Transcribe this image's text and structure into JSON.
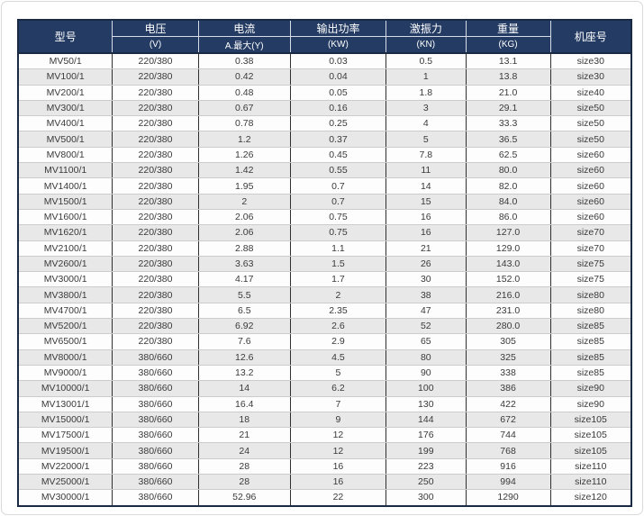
{
  "colors": {
    "header_bg": "#243b63",
    "header_divider": "#d7dde8",
    "table_border": "#1a2a45",
    "stripe": "#e8e8e8",
    "row_border": "#cccccc",
    "column_border": "#2f2f2f",
    "text": "#3a3a3a",
    "card_border": "#d9d9d9"
  },
  "table": {
    "columns": [
      {
        "key": "model",
        "label": "型号",
        "sub": ""
      },
      {
        "key": "volt",
        "label": "电压",
        "sub": "(V)"
      },
      {
        "key": "curr",
        "label": "电流",
        "sub": "A.最大(Y)"
      },
      {
        "key": "power",
        "label": "输出功率",
        "sub": "(KW)"
      },
      {
        "key": "force",
        "label": "激振力",
        "sub": "(KN)"
      },
      {
        "key": "weight",
        "label": "重量",
        "sub": "(KG)"
      },
      {
        "key": "frame",
        "label": "机座号",
        "sub": ""
      }
    ],
    "rows": [
      [
        "MV50/1",
        "220/380",
        "0.38",
        "0.03",
        "0.5",
        "13.1",
        "size30"
      ],
      [
        "MV100/1",
        "220/380",
        "0.42",
        "0.04",
        "1",
        "13.8",
        "size30"
      ],
      [
        "MV200/1",
        "220/380",
        "0.48",
        "0.05",
        "1.8",
        "21.0",
        "size40"
      ],
      [
        "MV300/1",
        "220/380",
        "0.67",
        "0.16",
        "3",
        "29.1",
        "size50"
      ],
      [
        "MV400/1",
        "220/380",
        "0.78",
        "0.25",
        "4",
        "33.3",
        "size50"
      ],
      [
        "MV500/1",
        "220/380",
        "1.2",
        "0.37",
        "5",
        "36.5",
        "size50"
      ],
      [
        "MV800/1",
        "220/380",
        "1.26",
        "0.45",
        "7.8",
        "62.5",
        "size60"
      ],
      [
        "MV1100/1",
        "220/380",
        "1.42",
        "0.55",
        "11",
        "80.0",
        "size60"
      ],
      [
        "MV1400/1",
        "220/380",
        "1.95",
        "0.7",
        "14",
        "82.0",
        "size60"
      ],
      [
        "MV1500/1",
        "220/380",
        "2",
        "0.7",
        "15",
        "84.0",
        "size60"
      ],
      [
        "MV1600/1",
        "220/380",
        "2.06",
        "0.75",
        "16",
        "86.0",
        "size60"
      ],
      [
        "MV1620/1",
        "220/380",
        "2.06",
        "0.75",
        "16",
        "127.0",
        "size70"
      ],
      [
        "MV2100/1",
        "220/380",
        "2.88",
        "1.1",
        "21",
        "129.0",
        "size70"
      ],
      [
        "MV2600/1",
        "220/380",
        "3.63",
        "1.5",
        "26",
        "143.0",
        "size75"
      ],
      [
        "MV3000/1",
        "220/380",
        "4.17",
        "1.7",
        "30",
        "152.0",
        "size75"
      ],
      [
        "MV3800/1",
        "220/380",
        "5.5",
        "2",
        "38",
        "216.0",
        "size80"
      ],
      [
        "MV4700/1",
        "220/380",
        "6.5",
        "2.35",
        "47",
        "231.0",
        "size80"
      ],
      [
        "MV5200/1",
        "220/380",
        "6.92",
        "2.6",
        "52",
        "280.0",
        "size85"
      ],
      [
        "MV6500/1",
        "220/380",
        "7.6",
        "2.9",
        "65",
        "305",
        "size85"
      ],
      [
        "MV8000/1",
        "380/660",
        "12.6",
        "4.5",
        "80",
        "325",
        "size85"
      ],
      [
        "MV9000/1",
        "380/660",
        "13.2",
        "5",
        "90",
        "338",
        "size85"
      ],
      [
        "MV10000/1",
        "380/660",
        "14",
        "6.2",
        "100",
        "386",
        "size90"
      ],
      [
        "MV13001/1",
        "380/660",
        "16.4",
        "7",
        "130",
        "422",
        "size90"
      ],
      [
        "MV15000/1",
        "380/660",
        "18",
        "9",
        "144",
        "672",
        "size105"
      ],
      [
        "MV17500/1",
        "380/660",
        "21",
        "12",
        "176",
        "744",
        "size105"
      ],
      [
        "MV19500/1",
        "380/660",
        "24",
        "12",
        "199",
        "768",
        "size105"
      ],
      [
        "MV22000/1",
        "380/660",
        "28",
        "16",
        "223",
        "916",
        "size110"
      ],
      [
        "MV25000/1",
        "380/660",
        "28",
        "16",
        "250",
        "994",
        "size110"
      ],
      [
        "MV30000/1",
        "380/660",
        "52.96",
        "22",
        "300",
        "1290",
        "size120"
      ]
    ]
  }
}
